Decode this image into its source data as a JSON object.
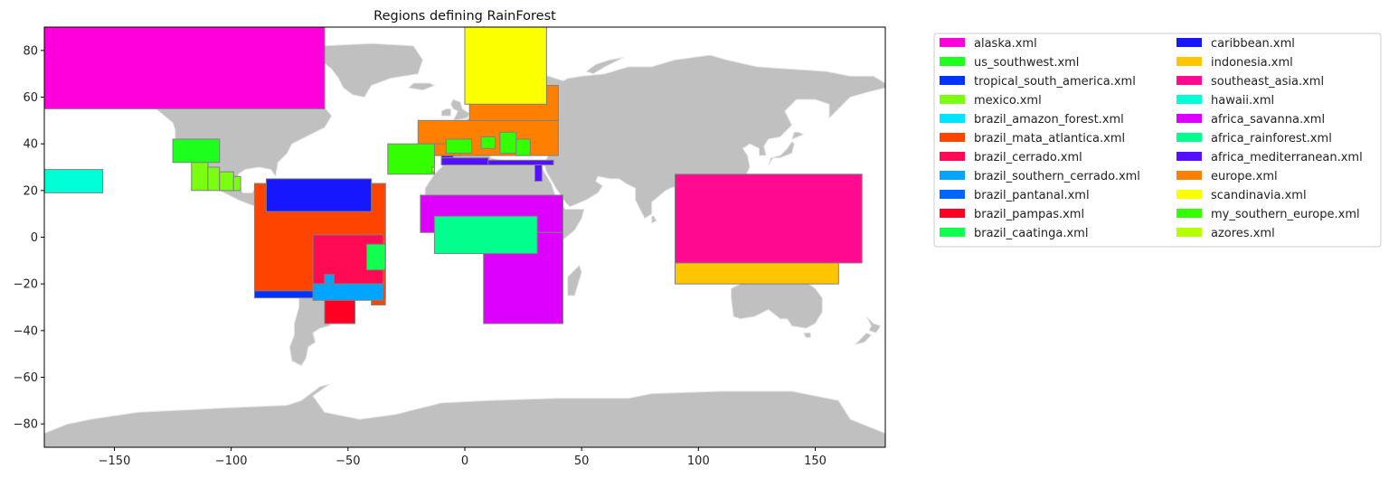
{
  "chart_data": {
    "type": "map",
    "title": "Regions defining RainForest",
    "xlim": [
      -180,
      180
    ],
    "ylim": [
      -90,
      90
    ],
    "xticks": [
      -150,
      -100,
      -50,
      0,
      50,
      100,
      150
    ],
    "yticks": [
      -80,
      -60,
      -40,
      -20,
      0,
      20,
      40,
      60,
      80
    ],
    "land_color": "#c0c0c0",
    "coast_color": "#e6e6e6",
    "region_edge_color": "#808080",
    "legend_placement": "outside-right",
    "regions": [
      {
        "name": "alaska.xml",
        "color": "#ff00dd",
        "boxes": [
          [
            -180,
            55,
            -60,
            90
          ]
        ]
      },
      {
        "name": "us_southwest.xml",
        "color": "#1dff1d",
        "boxes": [
          [
            -125,
            32,
            -105,
            42
          ]
        ]
      },
      {
        "name": "tropical_south_america.xml",
        "color": "#0033ff",
        "boxes": [
          [
            -90,
            -26,
            -34,
            23
          ]
        ]
      },
      {
        "name": "mexico.xml",
        "color": "#7bff11",
        "boxes": [
          [
            -117,
            20,
            -110,
            32
          ],
          [
            -110,
            20,
            -105,
            30
          ],
          [
            -105,
            20,
            -99,
            28
          ],
          [
            -99,
            20,
            -96,
            26
          ]
        ]
      },
      {
        "name": "brazil_amazon_forest.xml",
        "color": "#00e5ff",
        "boxes": []
      },
      {
        "name": "brazil_mata_atlantica.xml",
        "color": "#ff4400",
        "boxes": [
          [
            -90,
            -23,
            -34,
            23
          ],
          [
            -40,
            -29,
            -34,
            -20
          ]
        ]
      },
      {
        "name": "brazil_cerrado.xml",
        "color": "#ff0a55",
        "boxes": [
          [
            -65,
            -20,
            -35,
            1
          ]
        ]
      },
      {
        "name": "brazil_southern_cerrado.xml",
        "color": "#00a5ff",
        "boxes": [
          [
            -65,
            -27,
            -35,
            -20
          ],
          [
            -60,
            -20,
            -56,
            -16
          ]
        ]
      },
      {
        "name": "brazil_pantanal.xml",
        "color": "#0066ff",
        "boxes": []
      },
      {
        "name": "brazil_pampas.xml",
        "color": "#ff0022",
        "boxes": [
          [
            -60,
            -37,
            -47,
            -27
          ]
        ]
      },
      {
        "name": "brazil_caatinga.xml",
        "color": "#13ff4f",
        "boxes": [
          [
            -42,
            -14,
            -34,
            -3
          ]
        ]
      },
      {
        "name": "caribbean.xml",
        "color": "#1717ff",
        "boxes": [
          [
            -85,
            11,
            -40,
            25
          ]
        ]
      },
      {
        "name": "indonesia.xml",
        "color": "#ffc500",
        "boxes": [
          [
            90,
            -20,
            160,
            -11
          ]
        ]
      },
      {
        "name": "southeast_asia.xml",
        "color": "#ff0a90",
        "boxes": [
          [
            90,
            -11,
            170,
            27
          ]
        ]
      },
      {
        "name": "hawaii.xml",
        "color": "#00ffd5",
        "boxes": [
          [
            -180,
            19,
            -155,
            29
          ]
        ]
      },
      {
        "name": "africa_savanna.xml",
        "color": "#dd00ff",
        "boxes": [
          [
            -19,
            2,
            42,
            18
          ],
          [
            8,
            -37,
            42,
            2
          ]
        ]
      },
      {
        "name": "africa_rainforest.xml",
        "color": "#00ff8c",
        "boxes": [
          [
            -13,
            -7,
            31,
            9
          ]
        ]
      },
      {
        "name": "africa_mediterranean.xml",
        "color": "#5511ff",
        "boxes": [
          [
            -10,
            31,
            -5,
            36
          ],
          [
            -10,
            31,
            10,
            34
          ],
          [
            10,
            31,
            38,
            33
          ],
          [
            30,
            24,
            33,
            31
          ]
        ]
      },
      {
        "name": "europe.xml",
        "color": "#ff7f00",
        "boxes": [
          [
            -20,
            35,
            40,
            50
          ],
          [
            2,
            50,
            40,
            65
          ],
          [
            -20,
            35,
            -2,
            40
          ]
        ]
      },
      {
        "name": "scandinavia.xml",
        "color": "#fbff00",
        "boxes": [
          [
            0,
            57,
            35,
            90
          ]
        ]
      },
      {
        "name": "my_southern_europe.xml",
        "color": "#33ff00",
        "boxes": [
          [
            -33,
            27,
            -13,
            40
          ],
          [
            -8,
            36,
            3,
            42
          ],
          [
            7,
            38,
            13,
            43
          ],
          [
            15,
            36,
            22,
            45
          ],
          [
            22,
            35,
            28,
            42
          ]
        ]
      },
      {
        "name": "azores.xml",
        "color": "#b6ff00",
        "boxes": [
          [
            -14,
            28,
            -13,
            30
          ]
        ]
      }
    ]
  }
}
